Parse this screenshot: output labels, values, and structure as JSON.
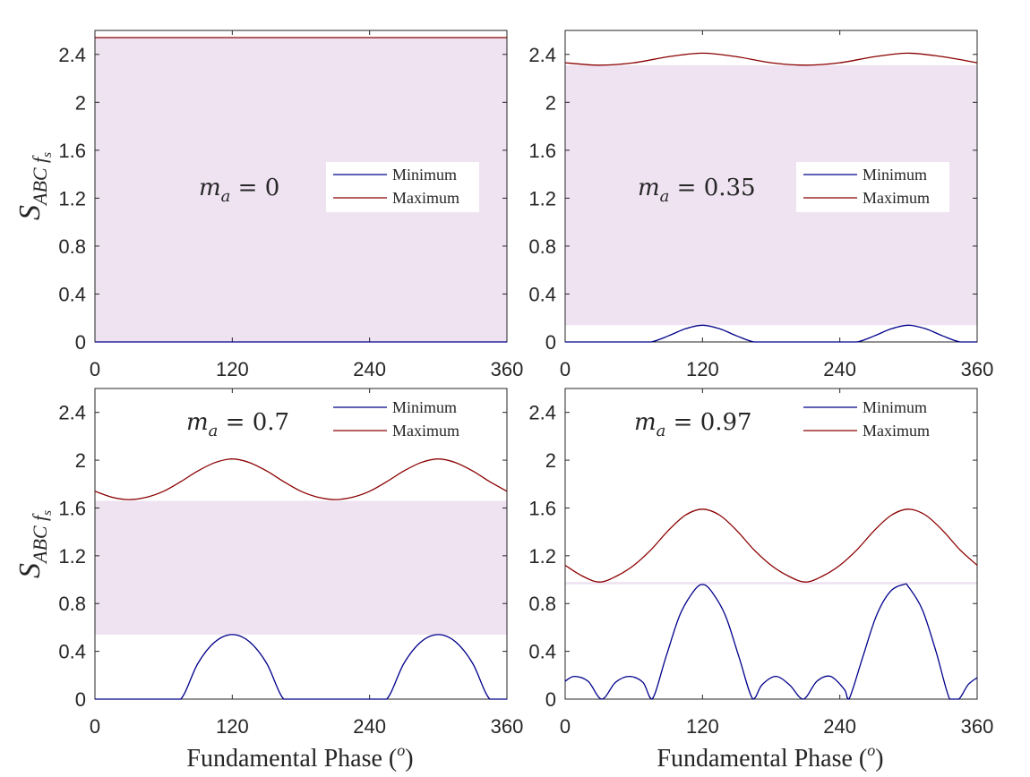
{
  "colors": {
    "minimum": "#00008b",
    "maximum": "#8b0000",
    "band": "#efe3f2",
    "axis": "#262626"
  },
  "y_tick_labels": [
    "0",
    "0.4",
    "0.8",
    "1.2",
    "1.6",
    "2",
    "2.4"
  ],
  "x_tick_labels": [
    "0",
    "120",
    "240",
    "360"
  ],
  "ylabel_main": "S",
  "ylabel_sub": "ABC f",
  "ylabel_subsub": "s",
  "xlabel_text": "Fundamental Phase (",
  "xlabel_sup": "o",
  "xlabel_close": ")",
  "ma_symbol": "m",
  "ma_sub": "a",
  "legend": {
    "min": "Minimum",
    "max": "Maximum"
  },
  "chart_data": [
    {
      "type": "line",
      "ma_value": "= 0",
      "xlim": [
        0,
        360
      ],
      "ylim": [
        0,
        2.6
      ],
      "band": [
        0,
        2.54
      ],
      "series": [
        {
          "name": "Minimum",
          "x": [
            0,
            60,
            120,
            180,
            240,
            300,
            360
          ],
          "values": [
            0,
            0,
            0,
            0,
            0,
            0,
            0
          ]
        },
        {
          "name": "Maximum",
          "x": [
            0,
            60,
            120,
            180,
            240,
            300,
            360
          ],
          "values": [
            2.54,
            2.54,
            2.54,
            2.54,
            2.54,
            2.54,
            2.54
          ]
        }
      ]
    },
    {
      "type": "line",
      "ma_value": "= 0.35",
      "xlim": [
        0,
        360
      ],
      "ylim": [
        0,
        2.6
      ],
      "band": [
        0.14,
        2.31
      ],
      "series": [
        {
          "name": "Minimum",
          "x": [
            0,
            60,
            75,
            90,
            105,
            120,
            135,
            150,
            165,
            180,
            240,
            255,
            270,
            285,
            300,
            315,
            330,
            345,
            360
          ],
          "values": [
            0,
            0,
            0,
            0.05,
            0.11,
            0.14,
            0.11,
            0.05,
            0,
            0,
            0,
            0,
            0.05,
            0.11,
            0.14,
            0.11,
            0.05,
            0,
            0
          ]
        },
        {
          "name": "Maximum",
          "x": [
            0,
            30,
            60,
            90,
            120,
            150,
            180,
            210,
            240,
            270,
            300,
            330,
            360
          ],
          "values": [
            2.33,
            2.31,
            2.33,
            2.38,
            2.41,
            2.38,
            2.33,
            2.31,
            2.33,
            2.38,
            2.41,
            2.38,
            2.33
          ]
        }
      ]
    },
    {
      "type": "line",
      "ma_value": "= 0.7",
      "xlim": [
        0,
        360
      ],
      "ylim": [
        0,
        2.6
      ],
      "band": [
        0.54,
        1.66
      ],
      "series": [
        {
          "name": "Minimum",
          "x": [
            0,
            60,
            75,
            90,
            105,
            120,
            135,
            150,
            165,
            180,
            240,
            255,
            270,
            285,
            300,
            315,
            330,
            345,
            360
          ],
          "values": [
            0,
            0,
            0,
            0.3,
            0.48,
            0.54,
            0.48,
            0.3,
            0,
            0,
            0,
            0,
            0.3,
            0.48,
            0.54,
            0.48,
            0.3,
            0,
            0
          ]
        },
        {
          "name": "Maximum",
          "x": [
            0,
            15,
            30,
            45,
            60,
            75,
            90,
            105,
            120,
            135,
            150,
            165,
            180,
            195,
            210,
            225,
            240,
            255,
            270,
            285,
            300,
            315,
            330,
            345,
            360
          ],
          "values": [
            1.74,
            1.69,
            1.67,
            1.69,
            1.74,
            1.82,
            1.91,
            1.98,
            2.01,
            1.98,
            1.91,
            1.82,
            1.74,
            1.69,
            1.67,
            1.69,
            1.74,
            1.82,
            1.91,
            1.98,
            2.01,
            1.98,
            1.91,
            1.82,
            1.74
          ]
        }
      ]
    },
    {
      "type": "line",
      "ma_value": "= 0.97",
      "xlim": [
        0,
        360
      ],
      "ylim": [
        0,
        2.6
      ],
      "band": [
        0.96,
        0.98
      ],
      "series": [
        {
          "name": "Minimum",
          "x": [
            0,
            8,
            20,
            32,
            44,
            56,
            68,
            76,
            88,
            100,
            112,
            120,
            128,
            140,
            152,
            164,
            172,
            184,
            196,
            208,
            220,
            232,
            244,
            248,
            260,
            272,
            284,
            296,
            300,
            312,
            324,
            336,
            344,
            352,
            360
          ],
          "values": [
            0.15,
            0.19,
            0.15,
            0,
            0.14,
            0.19,
            0.14,
            0,
            0.35,
            0.7,
            0.9,
            0.96,
            0.9,
            0.7,
            0.35,
            0,
            0.12,
            0.19,
            0.12,
            0,
            0.15,
            0.19,
            0.08,
            0,
            0.35,
            0.7,
            0.9,
            0.96,
            0.94,
            0.75,
            0.4,
            0,
            0,
            0.12,
            0.18
          ]
        },
        {
          "name": "Maximum",
          "x": [
            0,
            15,
            30,
            45,
            60,
            75,
            90,
            105,
            120,
            135,
            150,
            165,
            180,
            195,
            210,
            225,
            240,
            255,
            270,
            285,
            300,
            315,
            330,
            345,
            360
          ],
          "values": [
            1.12,
            1.03,
            0.98,
            1.03,
            1.12,
            1.25,
            1.41,
            1.54,
            1.59,
            1.54,
            1.41,
            1.25,
            1.12,
            1.03,
            0.98,
            1.03,
            1.12,
            1.25,
            1.41,
            1.54,
            1.59,
            1.54,
            1.41,
            1.25,
            1.12
          ]
        }
      ]
    }
  ]
}
